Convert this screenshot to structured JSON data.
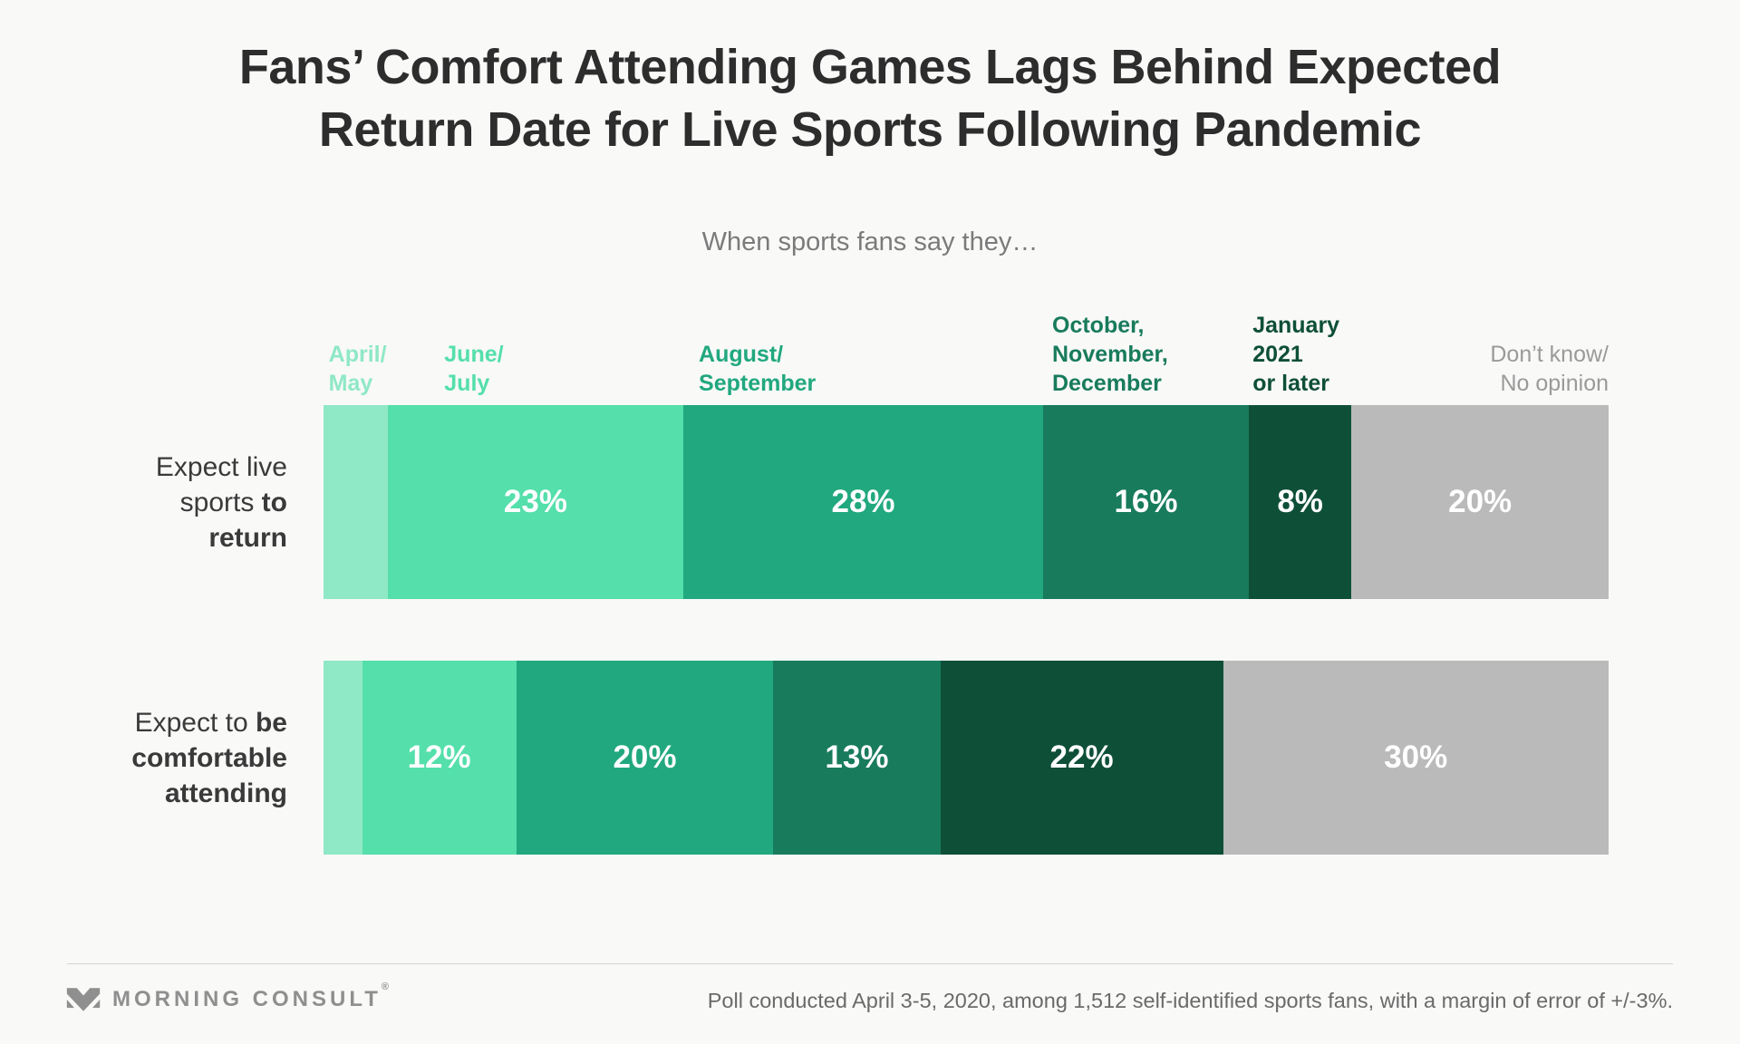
{
  "footer": {
    "brand": "MORNING CONSULT",
    "registered_mark": "®",
    "source_note": "Poll conducted April 3-5, 2020, among 1,512 self-identified sports fans, with a margin of error of +/-3%."
  },
  "chart_data": {
    "type": "bar",
    "variant": "horizontal-stacked-100-percent",
    "title": "Fans’ Comfort Attending Games Lags Behind Expected\nReturn Date for Live Sports Following Pandemic",
    "subtitle": "When sports fans say they…",
    "grid": false,
    "legend_position": "top",
    "axis": {
      "min": 0,
      "max": 100,
      "unit": "%"
    },
    "value_text_color": "#ffffff",
    "categories": [
      {
        "id": "april-may",
        "label": "April/\nMay",
        "label_color": "#8fe8c6",
        "bar_color": "#8fe8c6",
        "label_bold": true
      },
      {
        "id": "june-july",
        "label": "June/\nJuly",
        "label_color": "#54dfab",
        "bar_color": "#54dfab",
        "label_bold": true
      },
      {
        "id": "august-september",
        "label": "August/\nSeptember",
        "label_color": "#21a87e",
        "bar_color": "#21a87e",
        "label_bold": true
      },
      {
        "id": "october-november-december",
        "label": "October,\nNovember,\nDecember",
        "label_color": "#187b5c",
        "bar_color": "#187b5c",
        "label_bold": true
      },
      {
        "id": "january-2021-or-later",
        "label": "January\n2021\nor later",
        "label_color": "#0e4f38",
        "bar_color": "#0e4f38",
        "label_bold": true
      },
      {
        "id": "dont-know-no-opinion",
        "label": "Don’t know/\nNo opinion",
        "label_color": "#9a9a9a",
        "bar_color": "#bababa",
        "label_bold": false
      }
    ],
    "rows": [
      {
        "id": "expect-live-sports-to-return",
        "label_parts": [
          {
            "text": "Expect live sports ",
            "bold": false
          },
          {
            "text": "to return",
            "bold": true
          }
        ],
        "values": [
          5,
          23,
          28,
          16,
          8,
          20
        ],
        "value_labels": [
          "",
          "23%",
          "28%",
          "16%",
          "8%",
          "20%"
        ]
      },
      {
        "id": "expect-to-be-comfortable-attending",
        "label_parts": [
          {
            "text": "Expect to ",
            "bold": false
          },
          {
            "text": "be comfortable attending",
            "bold": true
          }
        ],
        "values": [
          3,
          12,
          20,
          13,
          22,
          30
        ],
        "value_labels": [
          "",
          "12%",
          "20%",
          "13%",
          "22%",
          "30%"
        ]
      }
    ]
  }
}
